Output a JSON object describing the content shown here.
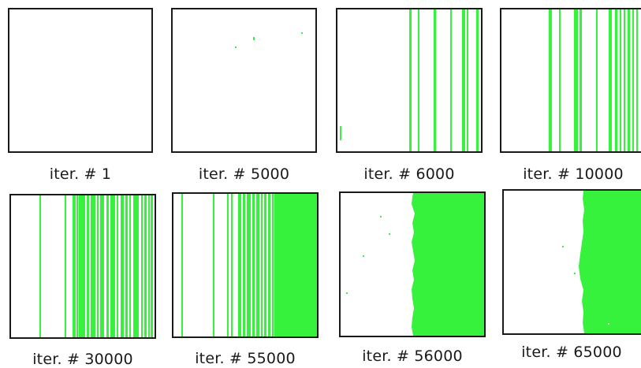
{
  "colors": {
    "phase": "#37f23c",
    "frame": "#1a1a1a",
    "background": "#ffffff"
  },
  "panels": [
    {
      "caption": "iter. # 1"
    },
    {
      "caption": "iter. # 5000"
    },
    {
      "caption": "iter. # 6000"
    },
    {
      "caption": "iter. # 10000"
    },
    {
      "caption": "iter. # 30000"
    },
    {
      "caption": "iter. # 55000"
    },
    {
      "caption": "iter. # 56000"
    },
    {
      "caption": "iter. # 65000"
    }
  ]
}
